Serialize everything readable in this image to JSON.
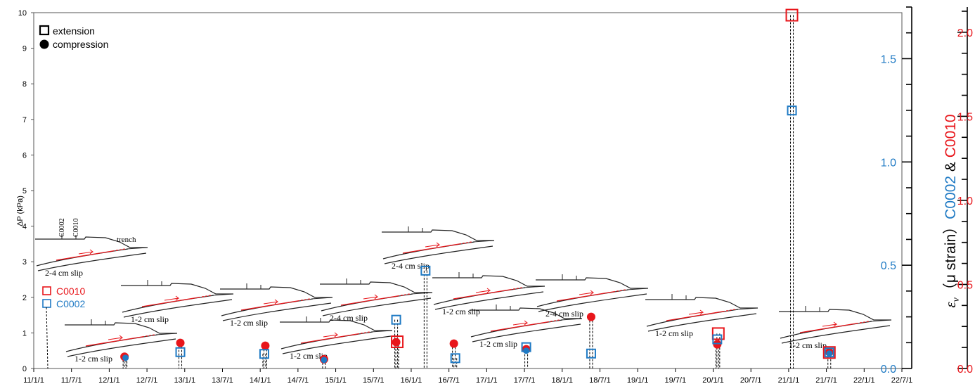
{
  "chart_data": {
    "type": "scatter",
    "x_axis": {
      "ticks": [
        "11/1/1",
        "11/7/1",
        "12/1/1",
        "12/7/1",
        "13/1/1",
        "13/7/1",
        "14/1/1",
        "14/7/1",
        "15/1/1",
        "15/7/1",
        "16/1/1",
        "16/7/1",
        "17/1/1",
        "17/7/1",
        "18/1/1",
        "18/7/1",
        "19/1/1",
        "19/7/1",
        "20/1/1",
        "20/7/1",
        "21/1/1",
        "21/7/1",
        "22/1/1",
        "22/7/1"
      ],
      "range": [
        "2011-01-01",
        "2022-07-01"
      ]
    },
    "y_left": {
      "label": "ΔP (kPa)",
      "ticks": [
        "0",
        "1",
        "2",
        "3",
        "4",
        "5",
        "6",
        "7",
        "8",
        "9",
        "10"
      ],
      "range": [
        0,
        10
      ]
    },
    "y_right_blue": {
      "ticks": [
        "0.0",
        "0.5",
        "1.0",
        "1.5"
      ],
      "range": [
        0,
        1.75
      ],
      "color": "#1f7ac4"
    },
    "y_right_red": {
      "ticks": [
        "0.0",
        "0.5",
        "1.0",
        "1.5",
        "2.0"
      ],
      "range": [
        0,
        2.15
      ],
      "color": "#e8161b"
    },
    "right_label": {
      "prefix": "ε",
      "sub": "v",
      "unit": "（μ strain）",
      "c0002": "C0002",
      "amp": " & ",
      "c0010": "C0010"
    },
    "legend": {
      "extension": "extension",
      "compression": "compression",
      "c0010": "C0010",
      "c0002": "C0002"
    },
    "colors": {
      "c0002": "#1f7ac4",
      "c0010": "#e8161b",
      "compression": "#e8161b",
      "markers_outline": "#000000"
    },
    "series": [
      {
        "name": "C0010",
        "points": [
          {
            "x": "2012-03-15",
            "y": 0.33,
            "shape": "circle"
          },
          {
            "x": "2012-12-10",
            "y": 0.72,
            "shape": "circle"
          },
          {
            "x": "2014-01-25",
            "y": 0.64,
            "shape": "circle"
          },
          {
            "x": "2014-11-05",
            "y": 0.26,
            "shape": "circle"
          },
          {
            "x": "2015-10-20",
            "y": 0.74,
            "shape": "circle"
          },
          {
            "x": "2015-10-25",
            "y": 0.75,
            "shape": "square"
          },
          {
            "x": "2016-07-25",
            "y": 0.7,
            "shape": "circle"
          },
          {
            "x": "2017-07-10",
            "y": 0.54,
            "shape": "circle"
          },
          {
            "x": "2018-05-20",
            "y": 1.45,
            "shape": "circle"
          },
          {
            "x": "2020-01-20",
            "y": 0.68,
            "shape": "circle"
          },
          {
            "x": "2020-01-25",
            "y": 0.98,
            "shape": "square"
          },
          {
            "x": "2021-01-15",
            "y": 9.93,
            "shape": "square"
          },
          {
            "x": "2021-07-15",
            "y": 0.45,
            "shape": "square"
          },
          {
            "x": "2021-07-15",
            "y": 0.46,
            "shape": "circle"
          }
        ]
      },
      {
        "name": "C0002",
        "points": [
          {
            "x": "2012-03-20",
            "y": 0.3,
            "shape": "circle"
          },
          {
            "x": "2012-12-10",
            "y": 0.46,
            "shape": "square"
          },
          {
            "x": "2014-01-20",
            "y": 0.41,
            "shape": "square"
          },
          {
            "x": "2014-11-05",
            "y": 0.24,
            "shape": "circle"
          },
          {
            "x": "2015-10-20",
            "y": 1.37,
            "shape": "square"
          },
          {
            "x": "2016-03-10",
            "y": 2.75,
            "shape": "square"
          },
          {
            "x": "2016-08-01",
            "y": 0.29,
            "shape": "square"
          },
          {
            "x": "2017-07-10",
            "y": 0.6,
            "shape": "square"
          },
          {
            "x": "2017-07-10",
            "y": 0.5,
            "shape": "circle"
          },
          {
            "x": "2018-05-20",
            "y": 0.42,
            "shape": "square"
          },
          {
            "x": "2020-01-20",
            "y": 0.82,
            "shape": "square"
          },
          {
            "x": "2021-01-15",
            "y": 7.25,
            "shape": "square"
          },
          {
            "x": "2021-07-15",
            "y": 0.45,
            "shape": "square"
          },
          {
            "x": "2021-07-15",
            "y": 0.42,
            "shape": "circle"
          }
        ]
      }
    ],
    "annotations": [
      {
        "type": "trench",
        "slip": "2-4 cm slip",
        "wells": [
          "C0002",
          "C0010"
        ],
        "trench": "trench"
      },
      {
        "type": "slip",
        "slip": "1-2 cm slip"
      },
      {
        "type": "slip",
        "slip": "1-2 cm slip"
      },
      {
        "type": "slip",
        "slip": "1-2 cm slip"
      },
      {
        "type": "slip",
        "slip": "1-2 cm slip"
      },
      {
        "type": "slip",
        "slip": "2-4 cm slip"
      },
      {
        "type": "slip",
        "slip": "2-4 cm slip"
      },
      {
        "type": "slip",
        "slip": "1-2 cm slip"
      },
      {
        "type": "slip",
        "slip": "1-2 cm slip"
      },
      {
        "type": "slip",
        "slip": "2-4 cm slip"
      },
      {
        "type": "slip",
        "slip": "1-2 cm slip"
      },
      {
        "type": "slip",
        "slip": "1-2 cm slip"
      }
    ]
  }
}
